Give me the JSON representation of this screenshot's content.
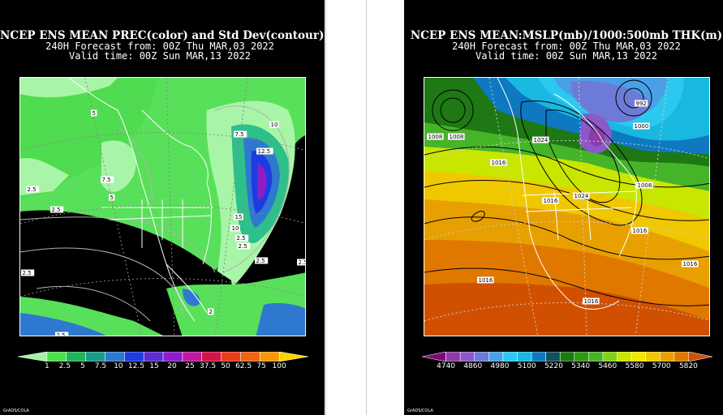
{
  "left_panel": {
    "title": "NCEP ENS MEAN PREC(color) and Std Dev(contour)",
    "subtitle1": "240H Forecast from: 00Z Thu MAR,03 2022",
    "subtitle2": "Valid time: 00Z Sun MAR,13 2022",
    "colorbar": {
      "labels": [
        "1",
        "2.5",
        "5",
        "7.5",
        "10",
        "12.5",
        "15",
        "20",
        "25",
        "37.5",
        "50",
        "62.5",
        "75",
        "100"
      ],
      "colors": [
        "#a0f5a0",
        "#4fe04f",
        "#22b45a",
        "#1a9c8c",
        "#2e78d0",
        "#1c3ce0",
        "#5a2ed0",
        "#8c1ec8",
        "#c01aa0",
        "#d2144a",
        "#e83c1c",
        "#f06414",
        "#f8960a",
        "#fcd200"
      ]
    },
    "map_labels": [
      "10",
      "12.5",
      "7.5",
      "15",
      "10",
      "2.5",
      "2.5",
      "5",
      "7.5",
      "2.5",
      "5",
      "2.5",
      "2.5",
      "2.5",
      "2.5",
      "2.5",
      "2"
    ],
    "credit": "GrADS/COLA"
  },
  "right_panel": {
    "title": "NCEP ENS MEAN:MSLP(mb)/1000:500mb THK(m)",
    "subtitle1": "240H Forecast from: 00Z Thu MAR,03 2022",
    "subtitle2": "Valid time: 00Z Sun MAR,13 2022",
    "colorbar": {
      "labels": [
        "4740",
        "4860",
        "4980",
        "5100",
        "5220",
        "5340",
        "5460",
        "5580",
        "5700",
        "5820"
      ],
      "colors": [
        "#7a0a7a",
        "#8c3ca8",
        "#8c5ac8",
        "#6e7ad8",
        "#4aa0e6",
        "#2cc8f0",
        "#18b8e0",
        "#0e78c0",
        "#14505a",
        "#1e7814",
        "#2e9a14",
        "#46b428",
        "#82d214",
        "#c8e600",
        "#f0e600",
        "#f0c800",
        "#e8a000",
        "#e07800",
        "#d05000"
      ]
    },
    "map_labels": [
      "1008",
      "1024",
      "992",
      "1000",
      "1016",
      "1008",
      "1016",
      "1024",
      "1008",
      "1016",
      "1016",
      "1016",
      "1016"
    ],
    "credit": "GrADS/COLA"
  }
}
